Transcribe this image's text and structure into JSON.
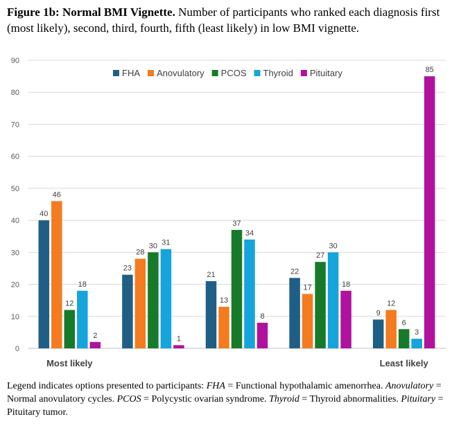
{
  "caption": {
    "bold": "Figure 1b: Normal BMI Vignette.",
    "rest": " Number of participants who ranked each diagnosis first (most likely), second, third, fourth, fifth (least likely) in low BMI vignette."
  },
  "chart_data": {
    "type": "bar",
    "title": "",
    "xlabel": "",
    "ylabel": "",
    "ylim": [
      0,
      90
    ],
    "yticks": [
      0,
      10,
      20,
      30,
      40,
      50,
      60,
      70,
      80,
      90
    ],
    "grid": true,
    "legend_position": "top",
    "categories": [
      "Most likely",
      "",
      "",
      "",
      "Least likely"
    ],
    "series": [
      {
        "name": "FHA",
        "color": "#1f5f86",
        "values": [
          40,
          23,
          21,
          22,
          9
        ]
      },
      {
        "name": "Anovulatory",
        "color": "#f47b20",
        "values": [
          46,
          28,
          13,
          17,
          12
        ]
      },
      {
        "name": "PCOS",
        "color": "#167a2a",
        "values": [
          12,
          30,
          37,
          27,
          6
        ]
      },
      {
        "name": "Thyroid",
        "color": "#15a4dc",
        "values": [
          18,
          31,
          34,
          30,
          3
        ]
      },
      {
        "name": "Pituitary",
        "color": "#b0129e",
        "values": [
          2,
          1,
          8,
          18,
          85
        ]
      }
    ]
  },
  "footnote": [
    {
      "t": "Legend indicates options presented to participants: ",
      "i": false
    },
    {
      "t": "FHA",
      "i": true
    },
    {
      "t": " = Functional hypothalamic amenorrhea. ",
      "i": false
    },
    {
      "t": "Anovulatory",
      "i": true
    },
    {
      "t": " = Normal anovulatory cycles. ",
      "i": false
    },
    {
      "t": "PCOS",
      "i": true
    },
    {
      "t": " = Polycystic ovarian syndrome.  ",
      "i": false
    },
    {
      "t": "Thyroid",
      "i": true
    },
    {
      "t": " = Thyroid abnormalities. ",
      "i": false
    },
    {
      "t": "Pituitary",
      "i": true
    },
    {
      "t": " = Pituitary tumor.",
      "i": false
    }
  ]
}
